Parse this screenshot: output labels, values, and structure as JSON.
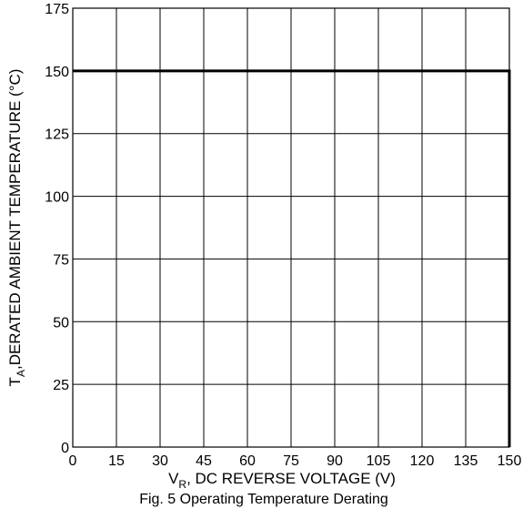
{
  "chart_data": {
    "type": "line",
    "caption": "Fig. 5 Operating Temperature Derating",
    "xlabel": {
      "main": "V",
      "sub": "R",
      "rest": ", DC REVERSE VOLTAGE (V)"
    },
    "ylabel": {
      "main": "T",
      "sub": "A",
      "rest": ",DERATED AMBIENT TEMPERATURE (°C)"
    },
    "xlim": [
      0,
      150
    ],
    "ylim": [
      0,
      175
    ],
    "xticks": [
      0,
      15,
      30,
      45,
      60,
      75,
      90,
      105,
      120,
      135,
      150
    ],
    "yticks": [
      0,
      25,
      50,
      75,
      100,
      125,
      150,
      175
    ],
    "grid": true,
    "series": [
      {
        "x": [
          0,
          150,
          150
        ],
        "y": [
          150,
          150,
          0
        ]
      }
    ]
  }
}
